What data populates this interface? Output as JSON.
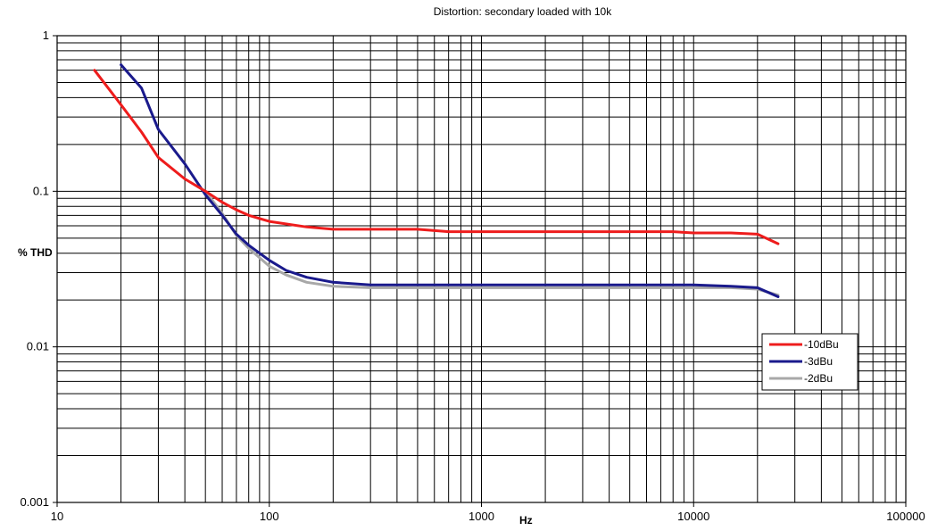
{
  "chart_data": {
    "type": "line",
    "title": "Distortion: secondary loaded with 10k",
    "xlabel": "Hz",
    "ylabel": "% THD",
    "x_scale": "log",
    "y_scale": "log",
    "xlim": [
      10,
      100000
    ],
    "ylim": [
      0.001,
      1
    ],
    "x_ticks": [
      "10",
      "100",
      "1000",
      "10000",
      "100000"
    ],
    "y_ticks": [
      "1",
      "0.1",
      "0.01",
      "0.001"
    ],
    "grid": true,
    "legend_position": "right",
    "series": [
      {
        "name": "-10dBu",
        "color": "#ee1c1c",
        "points": [
          [
            15,
            0.6
          ],
          [
            20,
            0.36
          ],
          [
            25,
            0.24
          ],
          [
            30,
            0.165
          ],
          [
            40,
            0.12
          ],
          [
            50,
            0.1
          ],
          [
            60,
            0.085
          ],
          [
            70,
            0.076
          ],
          [
            80,
            0.07
          ],
          [
            100,
            0.064
          ],
          [
            150,
            0.059
          ],
          [
            200,
            0.057
          ],
          [
            300,
            0.057
          ],
          [
            500,
            0.057
          ],
          [
            700,
            0.055
          ],
          [
            1000,
            0.055
          ],
          [
            2000,
            0.055
          ],
          [
            5000,
            0.055
          ],
          [
            8000,
            0.055
          ],
          [
            10000,
            0.054
          ],
          [
            15000,
            0.054
          ],
          [
            20000,
            0.053
          ],
          [
            25000,
            0.046
          ]
        ]
      },
      {
        "name": "-3dBu",
        "color": "#1a1a8c",
        "points": [
          [
            20,
            0.65
          ],
          [
            25,
            0.46
          ],
          [
            30,
            0.25
          ],
          [
            40,
            0.15
          ],
          [
            50,
            0.095
          ],
          [
            60,
            0.07
          ],
          [
            70,
            0.053
          ],
          [
            80,
            0.045
          ],
          [
            100,
            0.036
          ],
          [
            120,
            0.031
          ],
          [
            150,
            0.028
          ],
          [
            200,
            0.026
          ],
          [
            300,
            0.025
          ],
          [
            500,
            0.025
          ],
          [
            1000,
            0.025
          ],
          [
            2000,
            0.025
          ],
          [
            5000,
            0.025
          ],
          [
            10000,
            0.025
          ],
          [
            15000,
            0.0245
          ],
          [
            20000,
            0.024
          ],
          [
            25000,
            0.021
          ]
        ]
      },
      {
        "name": "-2dBu",
        "color": "#a8a8a8",
        "points": [
          [
            50,
            0.1
          ],
          [
            60,
            0.072
          ],
          [
            70,
            0.052
          ],
          [
            80,
            0.043
          ],
          [
            100,
            0.033
          ],
          [
            120,
            0.029
          ],
          [
            150,
            0.026
          ],
          [
            200,
            0.0245
          ],
          [
            300,
            0.024
          ],
          [
            500,
            0.024
          ],
          [
            1000,
            0.024
          ],
          [
            2000,
            0.024
          ],
          [
            5000,
            0.024
          ],
          [
            10000,
            0.024
          ],
          [
            15000,
            0.024
          ],
          [
            20000,
            0.0235
          ],
          [
            25000,
            0.0215
          ]
        ]
      }
    ]
  }
}
